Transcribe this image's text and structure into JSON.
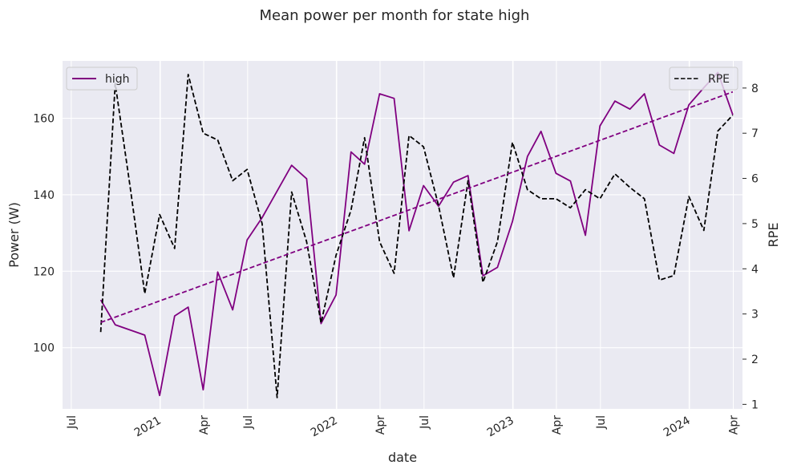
{
  "chart_data": {
    "type": "line",
    "title": "Mean power per month for state high",
    "xlabel": "date",
    "ylabel_left": "Power (W)",
    "ylabel_right": "RPE",
    "xlim": [
      "2020-06-13",
      "2024-04-20"
    ],
    "ylim_left": [
      84,
      175
    ],
    "ylim_right": [
      0.9,
      8.6
    ],
    "x_ticks": [
      {
        "date": "2020-07-01",
        "label": "Jul",
        "major": false
      },
      {
        "date": "2021-01-01",
        "label": "2021",
        "major": true
      },
      {
        "date": "2021-04-01",
        "label": "Apr",
        "major": false
      },
      {
        "date": "2021-07-01",
        "label": "Jul",
        "major": false
      },
      {
        "date": "2022-01-01",
        "label": "2022",
        "major": true
      },
      {
        "date": "2022-04-01",
        "label": "Apr",
        "major": false
      },
      {
        "date": "2022-07-01",
        "label": "Jul",
        "major": false
      },
      {
        "date": "2023-01-01",
        "label": "2023",
        "major": true
      },
      {
        "date": "2023-04-01",
        "label": "Apr",
        "major": false
      },
      {
        "date": "2023-07-01",
        "label": "Jul",
        "major": false
      },
      {
        "date": "2024-01-01",
        "label": "2024",
        "major": true
      },
      {
        "date": "2024-04-01",
        "label": "Apr",
        "major": false
      }
    ],
    "y_ticks_left": [
      100,
      120,
      140,
      160
    ],
    "y_ticks_right": [
      1,
      2,
      3,
      4,
      5,
      6,
      7,
      8
    ],
    "grid": true,
    "legend_left": {
      "position": "top-left",
      "label": "high",
      "color": "#800080",
      "style": "solid"
    },
    "legend_right": {
      "position": "top-right",
      "label": "RPE",
      "color": "#000000",
      "style": "dashed"
    },
    "series": [
      {
        "name": "high",
        "axis": "left",
        "color": "#800080",
        "style": "solid",
        "points": [
          [
            "2020-08-31",
            112.5
          ],
          [
            "2020-09-30",
            106.0
          ],
          [
            "2020-11-30",
            103.3
          ],
          [
            "2020-12-31",
            87.5
          ],
          [
            "2021-01-31",
            108.3
          ],
          [
            "2021-02-28",
            110.6
          ],
          [
            "2021-03-31",
            89.0
          ],
          [
            "2021-04-30",
            119.8
          ],
          [
            "2021-05-31",
            109.9
          ],
          [
            "2021-06-30",
            128.2
          ],
          [
            "2021-07-31",
            134.0
          ],
          [
            "2021-09-30",
            147.7
          ],
          [
            "2021-10-31",
            144.2
          ],
          [
            "2021-11-30",
            106.3
          ],
          [
            "2021-12-31",
            113.8
          ],
          [
            "2022-01-31",
            151.2
          ],
          [
            "2022-02-28",
            148.0
          ],
          [
            "2022-03-31",
            166.4
          ],
          [
            "2022-04-30",
            165.2
          ],
          [
            "2022-05-31",
            130.6
          ],
          [
            "2022-06-30",
            142.4
          ],
          [
            "2022-07-31",
            137.0
          ],
          [
            "2022-08-31",
            143.3
          ],
          [
            "2022-09-30",
            145.0
          ],
          [
            "2022-10-31",
            118.8
          ],
          [
            "2022-11-30",
            121.0
          ],
          [
            "2022-12-31",
            133.0
          ],
          [
            "2023-01-31",
            150.0
          ],
          [
            "2023-02-28",
            156.6
          ],
          [
            "2023-03-31",
            145.6
          ],
          [
            "2023-04-30",
            143.6
          ],
          [
            "2023-05-31",
            129.4
          ],
          [
            "2023-06-30",
            158.0
          ],
          [
            "2023-07-31",
            164.5
          ],
          [
            "2023-08-31",
            162.4
          ],
          [
            "2023-09-30",
            166.4
          ],
          [
            "2023-10-31",
            153.0
          ],
          [
            "2023-11-30",
            150.8
          ],
          [
            "2023-12-31",
            163.5
          ],
          [
            "2024-01-31",
            168.0
          ],
          [
            "2024-02-29",
            172.0
          ],
          [
            "2024-03-31",
            160.9
          ]
        ]
      },
      {
        "name": "RPE",
        "axis": "right",
        "color": "#000000",
        "style": "dashed",
        "points": [
          [
            "2020-08-31",
            2.6
          ],
          [
            "2020-09-30",
            8.1
          ],
          [
            "2020-10-31",
            5.8
          ],
          [
            "2020-11-30",
            3.45
          ],
          [
            "2020-12-31",
            5.2
          ],
          [
            "2021-01-31",
            4.45
          ],
          [
            "2021-02-28",
            8.3
          ],
          [
            "2021-03-31",
            7.0
          ],
          [
            "2021-04-30",
            6.85
          ],
          [
            "2021-05-31",
            5.95
          ],
          [
            "2021-06-30",
            6.2
          ],
          [
            "2021-07-31",
            5.0
          ],
          [
            "2021-08-31",
            1.15
          ],
          [
            "2021-09-30",
            5.7
          ],
          [
            "2021-10-31",
            4.6
          ],
          [
            "2021-11-30",
            2.8
          ],
          [
            "2021-12-31",
            4.3
          ],
          [
            "2022-01-31",
            5.3
          ],
          [
            "2022-02-28",
            6.9
          ],
          [
            "2022-03-31",
            4.6
          ],
          [
            "2022-04-30",
            3.9
          ],
          [
            "2022-05-31",
            6.95
          ],
          [
            "2022-06-30",
            6.7
          ],
          [
            "2022-07-31",
            5.4
          ],
          [
            "2022-08-31",
            3.8
          ],
          [
            "2022-09-30",
            5.95
          ],
          [
            "2022-10-31",
            3.7
          ],
          [
            "2022-11-30",
            4.6
          ],
          [
            "2022-12-31",
            6.8
          ],
          [
            "2023-01-31",
            5.75
          ],
          [
            "2023-02-28",
            5.55
          ],
          [
            "2023-03-31",
            5.55
          ],
          [
            "2023-04-30",
            5.35
          ],
          [
            "2023-05-31",
            5.75
          ],
          [
            "2023-06-30",
            5.55
          ],
          [
            "2023-07-31",
            6.1
          ],
          [
            "2023-08-31",
            5.8
          ],
          [
            "2023-09-30",
            5.55
          ],
          [
            "2023-10-31",
            3.75
          ],
          [
            "2023-11-30",
            3.85
          ],
          [
            "2023-12-31",
            5.6
          ],
          [
            "2024-01-31",
            4.85
          ],
          [
            "2024-02-29",
            7.05
          ],
          [
            "2024-03-31",
            7.4
          ]
        ]
      },
      {
        "axis": "left",
        "color": "#800080",
        "style": "dashed",
        "points": [
          [
            "2020-08-31",
            106.6
          ],
          [
            "2024-03-31",
            166.9
          ]
        ]
      }
    ]
  }
}
